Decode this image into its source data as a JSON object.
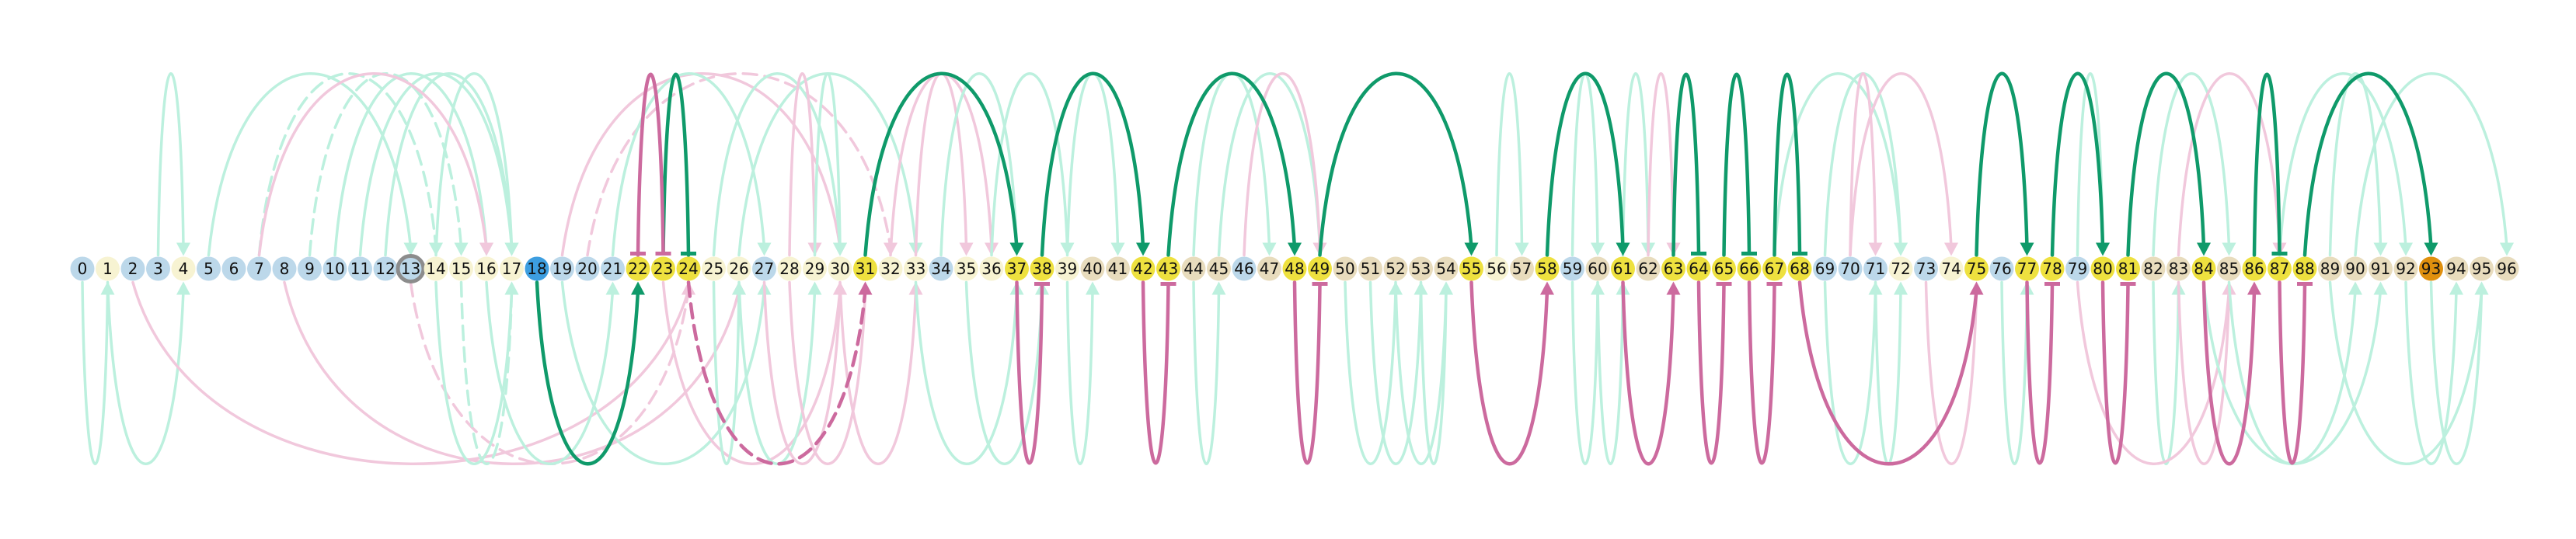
{
  "colors": {
    "node_blue": "#bcd8ea",
    "node_cream": "#f7f3d2",
    "node_yellow": "#eee13f",
    "node_tan": "#e8dcbd",
    "node_selected_blue": "#3d9ee0",
    "node_orange": "#e0900e",
    "ring_grey": "#8c8c8c",
    "arc_green_strong": "#0f9a6a",
    "arc_pink_strong": "#cc6a9e",
    "arc_green_faint": "#bcf0de",
    "arc_pink_faint": "#f1c8dc",
    "page_background": "#ffffff"
  },
  "nodes": [
    {
      "id": 0,
      "label": "0",
      "fill": "blue"
    },
    {
      "id": 1,
      "label": "1",
      "fill": "cream"
    },
    {
      "id": 2,
      "label": "2",
      "fill": "blue"
    },
    {
      "id": 3,
      "label": "3",
      "fill": "blue"
    },
    {
      "id": 4,
      "label": "4",
      "fill": "cream"
    },
    {
      "id": 5,
      "label": "5",
      "fill": "blue"
    },
    {
      "id": 6,
      "label": "6",
      "fill": "blue"
    },
    {
      "id": 7,
      "label": "7",
      "fill": "blue"
    },
    {
      "id": 8,
      "label": "8",
      "fill": "blue"
    },
    {
      "id": 9,
      "label": "9",
      "fill": "blue"
    },
    {
      "id": 10,
      "label": "10",
      "fill": "blue"
    },
    {
      "id": 11,
      "label": "11",
      "fill": "blue"
    },
    {
      "id": 12,
      "label": "12",
      "fill": "blue"
    },
    {
      "id": 13,
      "label": "13",
      "fill": "blue",
      "ring": true
    },
    {
      "id": 14,
      "label": "14",
      "fill": "cream"
    },
    {
      "id": 15,
      "label": "15",
      "fill": "cream"
    },
    {
      "id": 16,
      "label": "16",
      "fill": "cream"
    },
    {
      "id": 17,
      "label": "17",
      "fill": "cream"
    },
    {
      "id": 18,
      "label": "18",
      "fill": "selected_blue"
    },
    {
      "id": 19,
      "label": "19",
      "fill": "blue"
    },
    {
      "id": 20,
      "label": "20",
      "fill": "blue"
    },
    {
      "id": 21,
      "label": "21",
      "fill": "blue"
    },
    {
      "id": 22,
      "label": "22",
      "fill": "yellow"
    },
    {
      "id": 23,
      "label": "23",
      "fill": "yellow"
    },
    {
      "id": 24,
      "label": "24",
      "fill": "yellow"
    },
    {
      "id": 25,
      "label": "25",
      "fill": "cream"
    },
    {
      "id": 26,
      "label": "26",
      "fill": "cream"
    },
    {
      "id": 27,
      "label": "27",
      "fill": "blue"
    },
    {
      "id": 28,
      "label": "28",
      "fill": "cream"
    },
    {
      "id": 29,
      "label": "29",
      "fill": "cream"
    },
    {
      "id": 30,
      "label": "30",
      "fill": "cream"
    },
    {
      "id": 31,
      "label": "31",
      "fill": "yellow"
    },
    {
      "id": 32,
      "label": "32",
      "fill": "cream"
    },
    {
      "id": 33,
      "label": "33",
      "fill": "cream"
    },
    {
      "id": 34,
      "label": "34",
      "fill": "blue"
    },
    {
      "id": 35,
      "label": "35",
      "fill": "cream"
    },
    {
      "id": 36,
      "label": "36",
      "fill": "cream"
    },
    {
      "id": 37,
      "label": "37",
      "fill": "yellow"
    },
    {
      "id": 38,
      "label": "38",
      "fill": "yellow"
    },
    {
      "id": 39,
      "label": "39",
      "fill": "cream"
    },
    {
      "id": 40,
      "label": "40",
      "fill": "tan"
    },
    {
      "id": 41,
      "label": "41",
      "fill": "tan"
    },
    {
      "id": 42,
      "label": "42",
      "fill": "yellow"
    },
    {
      "id": 43,
      "label": "43",
      "fill": "yellow"
    },
    {
      "id": 44,
      "label": "44",
      "fill": "tan"
    },
    {
      "id": 45,
      "label": "45",
      "fill": "tan"
    },
    {
      "id": 46,
      "label": "46",
      "fill": "blue"
    },
    {
      "id": 47,
      "label": "47",
      "fill": "tan"
    },
    {
      "id": 48,
      "label": "48",
      "fill": "yellow"
    },
    {
      "id": 49,
      "label": "49",
      "fill": "yellow"
    },
    {
      "id": 50,
      "label": "50",
      "fill": "tan"
    },
    {
      "id": 51,
      "label": "51",
      "fill": "tan"
    },
    {
      "id": 52,
      "label": "52",
      "fill": "tan"
    },
    {
      "id": 53,
      "label": "53",
      "fill": "tan"
    },
    {
      "id": 54,
      "label": "54",
      "fill": "tan"
    },
    {
      "id": 55,
      "label": "55",
      "fill": "yellow"
    },
    {
      "id": 56,
      "label": "56",
      "fill": "cream"
    },
    {
      "id": 57,
      "label": "57",
      "fill": "tan"
    },
    {
      "id": 58,
      "label": "58",
      "fill": "yellow"
    },
    {
      "id": 59,
      "label": "59",
      "fill": "blue"
    },
    {
      "id": 60,
      "label": "60",
      "fill": "tan"
    },
    {
      "id": 61,
      "label": "61",
      "fill": "yellow"
    },
    {
      "id": 62,
      "label": "62",
      "fill": "tan"
    },
    {
      "id": 63,
      "label": "63",
      "fill": "yellow"
    },
    {
      "id": 64,
      "label": "64",
      "fill": "yellow"
    },
    {
      "id": 65,
      "label": "65",
      "fill": "yellow"
    },
    {
      "id": 66,
      "label": "66",
      "fill": "yellow"
    },
    {
      "id": 67,
      "label": "67",
      "fill": "yellow"
    },
    {
      "id": 68,
      "label": "68",
      "fill": "yellow"
    },
    {
      "id": 69,
      "label": "69",
      "fill": "blue"
    },
    {
      "id": 70,
      "label": "70",
      "fill": "blue"
    },
    {
      "id": 71,
      "label": "71",
      "fill": "blue"
    },
    {
      "id": 72,
      "label": "72",
      "fill": "cream"
    },
    {
      "id": 73,
      "label": "73",
      "fill": "blue"
    },
    {
      "id": 74,
      "label": "74",
      "fill": "cream"
    },
    {
      "id": 75,
      "label": "75",
      "fill": "yellow"
    },
    {
      "id": 76,
      "label": "76",
      "fill": "blue"
    },
    {
      "id": 77,
      "label": "77",
      "fill": "yellow"
    },
    {
      "id": 78,
      "label": "78",
      "fill": "yellow"
    },
    {
      "id": 79,
      "label": "79",
      "fill": "blue"
    },
    {
      "id": 80,
      "label": "80",
      "fill": "yellow"
    },
    {
      "id": 81,
      "label": "81",
      "fill": "yellow"
    },
    {
      "id": 82,
      "label": "82",
      "fill": "tan"
    },
    {
      "id": 83,
      "label": "83",
      "fill": "tan"
    },
    {
      "id": 84,
      "label": "84",
      "fill": "yellow"
    },
    {
      "id": 85,
      "label": "85",
      "fill": "tan"
    },
    {
      "id": 86,
      "label": "86",
      "fill": "yellow"
    },
    {
      "id": 87,
      "label": "87",
      "fill": "yellow"
    },
    {
      "id": 88,
      "label": "88",
      "fill": "yellow"
    },
    {
      "id": 89,
      "label": "89",
      "fill": "tan"
    },
    {
      "id": 90,
      "label": "90",
      "fill": "tan"
    },
    {
      "id": 91,
      "label": "91",
      "fill": "tan"
    },
    {
      "id": 92,
      "label": "92",
      "fill": "tan"
    },
    {
      "id": 93,
      "label": "93",
      "fill": "orange"
    },
    {
      "id": 94,
      "label": "94",
      "fill": "tan"
    },
    {
      "id": 95,
      "label": "95",
      "fill": "tan"
    },
    {
      "id": 96,
      "label": "96",
      "fill": "tan"
    }
  ],
  "strong_arcs": [
    {
      "from": 24,
      "to": 23,
      "side": "above",
      "color": "green",
      "tail": "bar",
      "head": "bar"
    },
    {
      "from": 22,
      "to": 23,
      "side": "above",
      "color": "pink",
      "tail": "bar",
      "head": "bar"
    },
    {
      "from": 31,
      "to": 37,
      "side": "above",
      "color": "green",
      "head": "arrow"
    },
    {
      "from": 38,
      "to": 42,
      "side": "above",
      "color": "green",
      "head": "arrow"
    },
    {
      "from": 43,
      "to": 48,
      "side": "above",
      "color": "green",
      "head": "arrow"
    },
    {
      "from": 49,
      "to": 55,
      "side": "above",
      "color": "green",
      "head": "arrow"
    },
    {
      "from": 58,
      "to": 61,
      "side": "above",
      "color": "green",
      "head": "arrow"
    },
    {
      "from": 63,
      "to": 64,
      "side": "above",
      "color": "green",
      "head": "bar"
    },
    {
      "from": 65,
      "to": 66,
      "side": "above",
      "color": "green",
      "head": "bar"
    },
    {
      "from": 67,
      "to": 68,
      "side": "above",
      "color": "green",
      "head": "bar"
    },
    {
      "from": 75,
      "to": 77,
      "side": "above",
      "color": "green",
      "head": "arrow"
    },
    {
      "from": 78,
      "to": 80,
      "side": "above",
      "color": "green",
      "head": "arrow"
    },
    {
      "from": 81,
      "to": 84,
      "side": "above",
      "color": "green",
      "head": "arrow"
    },
    {
      "from": 86,
      "to": 87,
      "side": "above",
      "color": "green",
      "head": "bar"
    },
    {
      "from": 88,
      "to": 93,
      "side": "above",
      "color": "green",
      "head": "arrow"
    },
    {
      "from": 18,
      "to": 22,
      "side": "below",
      "color": "green",
      "head": "arrow"
    },
    {
      "from": 24,
      "to": 31,
      "side": "below",
      "color": "pink",
      "head": "arrow",
      "dashed": true
    },
    {
      "from": 37,
      "to": 38,
      "side": "below",
      "color": "pink",
      "head": "bar"
    },
    {
      "from": 42,
      "to": 43,
      "side": "below",
      "color": "pink",
      "head": "bar"
    },
    {
      "from": 48,
      "to": 49,
      "side": "below",
      "color": "pink",
      "head": "bar"
    },
    {
      "from": 55,
      "to": 58,
      "side": "below",
      "color": "pink",
      "head": "arrow"
    },
    {
      "from": 61,
      "to": 63,
      "side": "below",
      "color": "pink",
      "head": "arrow"
    },
    {
      "from": 64,
      "to": 65,
      "side": "below",
      "color": "pink",
      "head": "bar"
    },
    {
      "from": 66,
      "to": 67,
      "side": "below",
      "color": "pink",
      "head": "bar"
    },
    {
      "from": 68,
      "to": 75,
      "side": "below",
      "color": "pink",
      "head": "arrow"
    },
    {
      "from": 77,
      "to": 78,
      "side": "below",
      "color": "pink",
      "head": "bar"
    },
    {
      "from": 80,
      "to": 81,
      "side": "below",
      "color": "pink",
      "head": "bar"
    },
    {
      "from": 84,
      "to": 86,
      "side": "below",
      "color": "pink",
      "head": "arrow"
    },
    {
      "from": 87,
      "to": 88,
      "side": "below",
      "color": "pink",
      "head": "bar"
    }
  ],
  "faint_arcs": [
    {
      "from": 3,
      "to": 4,
      "side": "above",
      "color": "green"
    },
    {
      "from": 0,
      "to": 1,
      "side": "below",
      "color": "green"
    },
    {
      "from": 1,
      "to": 4,
      "side": "below",
      "color": "green"
    },
    {
      "from": 5,
      "to": 13,
      "side": "above",
      "color": "green"
    },
    {
      "from": 7,
      "to": 14,
      "side": "above",
      "color": "green",
      "dashed": true
    },
    {
      "from": 9,
      "to": 15,
      "side": "above",
      "color": "green",
      "dashed": true
    },
    {
      "from": 10,
      "to": 16,
      "side": "above",
      "color": "green"
    },
    {
      "from": 11,
      "to": 17,
      "side": "above",
      "color": "green"
    },
    {
      "from": 12,
      "to": 17,
      "side": "above",
      "color": "green"
    },
    {
      "from": 14,
      "to": 17,
      "side": "above",
      "color": "green"
    },
    {
      "from": 7,
      "to": 16,
      "side": "above",
      "color": "pink"
    },
    {
      "from": 2,
      "to": 24,
      "side": "below",
      "color": "pink"
    },
    {
      "from": 8,
      "to": 26,
      "side": "below",
      "color": "pink"
    },
    {
      "from": 13,
      "to": 24,
      "side": "below",
      "color": "pink",
      "dashed": true
    },
    {
      "from": 14,
      "to": 17,
      "side": "below",
      "color": "green"
    },
    {
      "from": 15,
      "to": 17,
      "side": "below",
      "color": "green",
      "dashed": true
    },
    {
      "from": 16,
      "to": 21,
      "side": "below",
      "color": "green"
    },
    {
      "from": 19,
      "to": 30,
      "side": "above",
      "color": "pink"
    },
    {
      "from": 20,
      "to": 32,
      "side": "above",
      "color": "pink",
      "dashed": true
    },
    {
      "from": 21,
      "to": 27,
      "side": "above",
      "color": "green"
    },
    {
      "from": 25,
      "to": 30,
      "side": "above",
      "color": "green"
    },
    {
      "from": 26,
      "to": 33,
      "side": "above",
      "color": "green"
    },
    {
      "from": 28,
      "to": 29,
      "side": "above",
      "color": "pink"
    },
    {
      "from": 29,
      "to": 30,
      "side": "above",
      "color": "green"
    },
    {
      "from": 19,
      "to": 27,
      "side": "below",
      "color": "green"
    },
    {
      "from": 23,
      "to": 30,
      "side": "below",
      "color": "pink"
    },
    {
      "from": 25,
      "to": 26,
      "side": "below",
      "color": "green"
    },
    {
      "from": 26,
      "to": 29,
      "side": "below",
      "color": "green"
    },
    {
      "from": 27,
      "to": 30,
      "side": "below",
      "color": "pink"
    },
    {
      "from": 28,
      "to": 31,
      "side": "below",
      "color": "pink"
    },
    {
      "from": 30,
      "to": 33,
      "side": "below",
      "color": "pink"
    },
    {
      "from": 32,
      "to": 36,
      "side": "above",
      "color": "pink"
    },
    {
      "from": 33,
      "to": 35,
      "side": "above",
      "color": "pink"
    },
    {
      "from": 34,
      "to": 37,
      "side": "above",
      "color": "green"
    },
    {
      "from": 36,
      "to": 39,
      "side": "above",
      "color": "green"
    },
    {
      "from": 33,
      "to": 37,
      "side": "below",
      "color": "green"
    },
    {
      "from": 35,
      "to": 38,
      "side": "below",
      "color": "green"
    },
    {
      "from": 39,
      "to": 40,
      "side": "below",
      "color": "green"
    },
    {
      "from": 39,
      "to": 41,
      "side": "above",
      "color": "green"
    },
    {
      "from": 44,
      "to": 47,
      "side": "above",
      "color": "green"
    },
    {
      "from": 45,
      "to": 49,
      "side": "above",
      "color": "green"
    },
    {
      "from": 46,
      "to": 49,
      "side": "above",
      "color": "pink"
    },
    {
      "from": 44,
      "to": 45,
      "side": "below",
      "color": "green"
    },
    {
      "from": 50,
      "to": 52,
      "side": "below",
      "color": "green"
    },
    {
      "from": 51,
      "to": 53,
      "side": "below",
      "color": "green"
    },
    {
      "from": 52,
      "to": 54,
      "side": "below",
      "color": "green"
    },
    {
      "from": 53,
      "to": 54,
      "side": "below",
      "color": "green"
    },
    {
      "from": 56,
      "to": 57,
      "side": "above",
      "color": "green"
    },
    {
      "from": 59,
      "to": 60,
      "side": "above",
      "color": "green"
    },
    {
      "from": 61,
      "to": 62,
      "side": "above",
      "color": "green"
    },
    {
      "from": 62,
      "to": 63,
      "side": "above",
      "color": "pink"
    },
    {
      "from": 59,
      "to": 60,
      "side": "below",
      "color": "green"
    },
    {
      "from": 60,
      "to": 61,
      "side": "below",
      "color": "green"
    },
    {
      "from": 67,
      "to": 72,
      "side": "above",
      "color": "green"
    },
    {
      "from": 69,
      "to": 72,
      "side": "above",
      "color": "green"
    },
    {
      "from": 70,
      "to": 71,
      "side": "above",
      "color": "pink"
    },
    {
      "from": 70,
      "to": 74,
      "side": "above",
      "color": "pink"
    },
    {
      "from": 69,
      "to": 71,
      "side": "below",
      "color": "green"
    },
    {
      "from": 71,
      "to": 72,
      "side": "below",
      "color": "green"
    },
    {
      "from": 73,
      "to": 75,
      "side": "below",
      "color": "pink"
    },
    {
      "from": 76,
      "to": 77,
      "side": "below",
      "color": "green"
    },
    {
      "from": 79,
      "to": 80,
      "side": "above",
      "color": "green"
    },
    {
      "from": 82,
      "to": 85,
      "side": "above",
      "color": "green"
    },
    {
      "from": 83,
      "to": 87,
      "side": "above",
      "color": "pink"
    },
    {
      "from": 82,
      "to": 83,
      "side": "below",
      "color": "green"
    },
    {
      "from": 79,
      "to": 85,
      "side": "below",
      "color": "pink"
    },
    {
      "from": 83,
      "to": 85,
      "side": "below",
      "color": "pink"
    },
    {
      "from": 84,
      "to": 91,
      "side": "below",
      "color": "green"
    },
    {
      "from": 85,
      "to": 90,
      "side": "below",
      "color": "green"
    },
    {
      "from": 87,
      "to": 92,
      "side": "above",
      "color": "green"
    },
    {
      "from": 89,
      "to": 91,
      "side": "above",
      "color": "green"
    },
    {
      "from": 90,
      "to": 96,
      "side": "above",
      "color": "green"
    },
    {
      "from": 89,
      "to": 95,
      "side": "below",
      "color": "green"
    },
    {
      "from": 92,
      "to": 94,
      "side": "below",
      "color": "green"
    },
    {
      "from": 93,
      "to": 95,
      "side": "below",
      "color": "green"
    }
  ]
}
